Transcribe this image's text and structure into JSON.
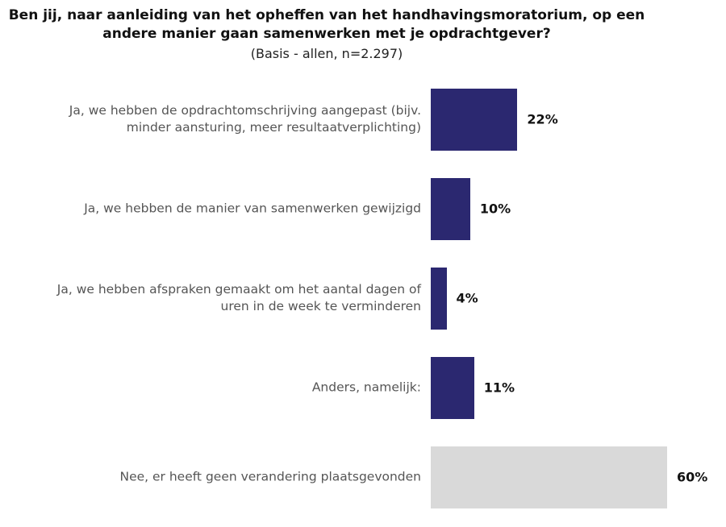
{
  "chart_data": {
    "type": "bar",
    "orientation": "horizontal",
    "title": "Ben jij, naar aanleiding van het opheffen van het handhavingsmoratorium, op een andere manier gaan samenwerken met je opdrachtgever?",
    "subtitle": "(Basis - allen, n=2.297)",
    "categories": [
      "Ja, we hebben de opdrachtomschrijving aangepast (bijv. minder aansturing, meer resultaatverplichting)",
      "Ja, we hebben de manier van samenwerken gewijzigd",
      "Ja, we hebben afspraken gemaakt om het aantal dagen of uren in de week te verminderen",
      "Anders, namelijk:",
      "Nee, er heeft geen verandering plaatsgevonden"
    ],
    "values": [
      22,
      10,
      4,
      11,
      60
    ],
    "value_labels": [
      "22%",
      "10%",
      "4%",
      "11%",
      "60%"
    ],
    "colors": [
      "#2b2870",
      "#2b2870",
      "#2b2870",
      "#2b2870",
      "#d9d9d9"
    ]
  }
}
